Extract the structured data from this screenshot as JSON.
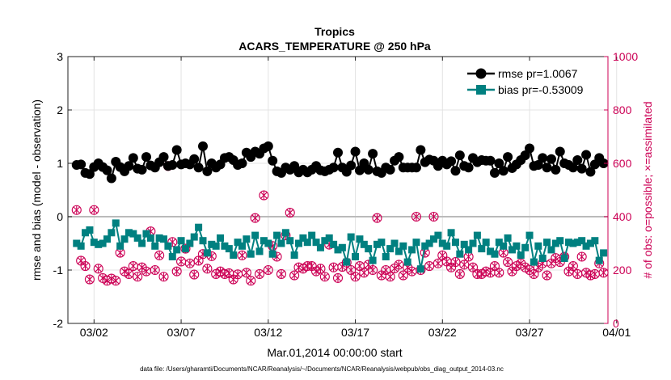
{
  "chart_data": {
    "type": "line",
    "title": "Tropics",
    "subtitle": "ACARS_TEMPERATURE @ 250 hPa",
    "xlabel": "Mar.01,2014 00:00:00 start",
    "ylabel_left": "rmse and bias (model - observation)",
    "ylabel_right": "# of obs: o=possible; ×=assimilated",
    "footnote": "data file: /Users/gharamti/Documents/NCAR/Reanalysis/~/Documents/NCAR/Reanalysis/webpub/obs_diag_output_2014-03.nc",
    "xlim": [
      0.5,
      31.5
    ],
    "xticks": [
      2,
      7,
      12,
      17,
      22,
      27,
      32
    ],
    "xtick_labels": [
      "03/02",
      "03/07",
      "03/12",
      "03/17",
      "03/22",
      "03/27",
      "04/01"
    ],
    "ylim_left": [
      -2,
      3
    ],
    "yticks_left": [
      -2,
      -1,
      0,
      1,
      2,
      3
    ],
    "ylim_right": [
      0,
      1000
    ],
    "yticks_right": [
      0,
      200,
      400,
      600,
      800,
      1000
    ],
    "zero_line": 0,
    "legend_position": "top-right",
    "colors": {
      "rmse": "#000000",
      "bias": "#008080",
      "obs": "#cc0055",
      "axis": "#222222",
      "zero": "#bbbbbb"
    },
    "x": [
      1.0,
      1.25,
      1.5,
      1.75,
      2.0,
      2.25,
      2.5,
      2.75,
      3.0,
      3.25,
      3.5,
      3.75,
      4.0,
      4.25,
      4.5,
      4.75,
      5.0,
      5.25,
      5.5,
      5.75,
      6.0,
      6.25,
      6.5,
      6.75,
      7.0,
      7.25,
      7.5,
      7.75,
      8.0,
      8.25,
      8.5,
      8.75,
      9.0,
      9.25,
      9.5,
      9.75,
      10.0,
      10.25,
      10.5,
      10.75,
      11.0,
      11.25,
      11.5,
      11.75,
      12.0,
      12.25,
      12.5,
      12.75,
      13.0,
      13.25,
      13.5,
      13.75,
      14.0,
      14.25,
      14.5,
      14.75,
      15.0,
      15.25,
      15.5,
      15.75,
      16.0,
      16.25,
      16.5,
      16.75,
      17.0,
      17.25,
      17.5,
      17.75,
      18.0,
      18.25,
      18.5,
      18.75,
      19.0,
      19.25,
      19.5,
      19.75,
      20.0,
      20.25,
      20.5,
      20.75,
      21.0,
      21.25,
      21.5,
      21.75,
      22.0,
      22.25,
      22.5,
      22.75,
      23.0,
      23.25,
      23.5,
      23.75,
      24.0,
      24.25,
      24.5,
      24.75,
      25.0,
      25.25,
      25.5,
      25.75,
      26.0,
      26.25,
      26.5,
      26.75,
      27.0,
      27.25,
      27.5,
      27.75,
      28.0,
      28.25,
      28.5,
      28.75,
      29.0,
      29.25,
      29.5,
      29.75,
      30.0,
      30.25,
      30.5,
      30.75,
      31.0,
      31.25
    ],
    "series": [
      {
        "name": "rmse pr=1.0067",
        "marker": "circle",
        "values": [
          0.97,
          0.98,
          0.82,
          0.8,
          0.93,
          1.0,
          0.93,
          0.87,
          0.72,
          1.03,
          0.93,
          0.85,
          0.95,
          1.1,
          0.9,
          0.88,
          1.12,
          0.96,
          0.92,
          1.02,
          1.12,
          0.95,
          0.97,
          1.25,
          0.98,
          1.0,
          0.98,
          1.08,
          0.92,
          1.32,
          0.85,
          1.0,
          0.92,
          0.98,
          1.1,
          1.12,
          1.06,
          0.97,
          1.0,
          1.2,
          1.12,
          1.22,
          1.18,
          1.28,
          1.32,
          1.05,
          0.85,
          0.82,
          0.92,
          0.88,
          0.95,
          0.83,
          0.88,
          0.83,
          0.88,
          0.95,
          0.87,
          0.85,
          0.88,
          0.92,
          1.2,
          0.92,
          0.84,
          0.96,
          1.22,
          0.87,
          1.0,
          0.88,
          1.18,
          0.85,
          0.82,
          0.92,
          0.88,
          1.05,
          1.12,
          0.92,
          0.92,
          0.92,
          0.92,
          1.25,
          1.02,
          1.07,
          1.05,
          0.95,
          1.05,
          0.98,
          1.04,
          0.86,
          1.15,
          0.95,
          0.92,
          1.1,
          1.02,
          1.06,
          1.05,
          1.05,
          0.82,
          1.0,
          0.86,
          1.12,
          0.91,
          0.98,
          1.06,
          1.15,
          1.28,
          0.95,
          0.97,
          1.1,
          0.92,
          1.08,
          0.88,
          1.22,
          1.0,
          0.97,
          0.92,
          1.06,
          0.9,
          1.16,
          0.84,
          0.98,
          1.1,
          1.0
        ]
      },
      {
        "name": "bias pr=-0.53009",
        "marker": "square",
        "values": [
          -0.5,
          -0.55,
          -0.3,
          -0.25,
          -0.48,
          -0.52,
          -0.5,
          -0.42,
          -0.3,
          -0.12,
          -0.55,
          -0.42,
          -0.3,
          -0.32,
          -0.4,
          -0.5,
          -0.32,
          -0.4,
          -0.55,
          -0.4,
          -0.42,
          -0.55,
          -0.75,
          -0.62,
          -0.45,
          -0.6,
          -0.5,
          -0.38,
          -0.2,
          -0.45,
          -0.68,
          -0.52,
          -0.55,
          -0.4,
          -0.55,
          -0.6,
          -0.72,
          -0.48,
          -0.55,
          -0.42,
          -0.7,
          -0.35,
          -0.65,
          -0.45,
          -0.5,
          -0.7,
          -0.35,
          -0.5,
          -0.3,
          -0.45,
          -0.72,
          -0.5,
          -0.4,
          -0.48,
          -0.35,
          -0.48,
          -0.58,
          -0.45,
          -0.4,
          -0.52,
          -0.62,
          -0.58,
          -0.85,
          -0.38,
          -0.75,
          -0.42,
          -0.52,
          -0.6,
          -0.82,
          -0.52,
          -0.48,
          -0.75,
          -0.6,
          -0.5,
          -0.65,
          -0.55,
          -0.85,
          -0.62,
          -0.48,
          -0.98,
          -0.55,
          -0.5,
          -0.42,
          -0.35,
          -0.5,
          -0.55,
          -0.3,
          -0.48,
          -0.7,
          -0.52,
          -0.62,
          -0.5,
          -0.35,
          -0.6,
          -0.48,
          -0.65,
          -0.7,
          -0.48,
          -0.55,
          -0.4,
          -0.62,
          -0.55,
          -0.72,
          -0.58,
          -0.35,
          -0.85,
          -0.55,
          -0.78,
          -0.48,
          -0.62,
          -0.5,
          -0.45,
          -0.78,
          -0.48,
          -0.5,
          -0.48,
          -0.45,
          -0.55,
          -0.5,
          -0.45,
          -0.82,
          -0.68
        ]
      }
    ],
    "obs_possible": [
      425,
      235,
      215,
      165,
      425,
      205,
      170,
      160,
      168,
      160,
      265,
      195,
      185,
      215,
      175,
      210,
      195,
      345,
      200,
      255,
      175,
      590,
      305,
      195,
      232,
      280,
      225,
      183,
      235,
      260,
      205,
      252,
      185,
      195,
      185,
      188,
      165,
      184,
      255,
      190,
      160,
      395,
      185,
      480,
      200,
      290,
      250,
      185,
      330,
      415,
      180,
      210,
      205,
      215,
      215,
      195,
      205,
      175,
      295,
      210,
      170,
      212,
      228,
      200,
      175,
      215,
      190,
      220,
      200,
      395,
      180,
      200,
      175,
      206,
      220,
      180,
      210,
      195,
      400,
      200,
      265,
      215,
      400,
      225,
      255,
      232,
      210,
      230,
      185,
      220,
      250,
      210,
      185,
      185,
      195,
      190,
      215,
      190,
      265,
      230,
      195,
      215,
      225,
      210,
      200,
      185,
      210,
      225,
      180,
      225,
      245,
      230,
      250,
      195,
      215,
      185,
      250,
      190,
      180,
      185,
      225,
      190
    ],
    "obs_assimilated": [
      425,
      235,
      215,
      165,
      425,
      205,
      170,
      160,
      168,
      160,
      265,
      195,
      185,
      215,
      175,
      210,
      195,
      345,
      200,
      255,
      175,
      590,
      305,
      195,
      232,
      280,
      225,
      183,
      235,
      260,
      205,
      252,
      185,
      195,
      185,
      188,
      165,
      184,
      255,
      190,
      160,
      395,
      185,
      480,
      200,
      290,
      250,
      185,
      330,
      415,
      180,
      210,
      205,
      215,
      215,
      195,
      205,
      175,
      295,
      210,
      170,
      212,
      228,
      200,
      175,
      215,
      190,
      220,
      200,
      395,
      180,
      200,
      175,
      206,
      220,
      180,
      210,
      195,
      400,
      200,
      265,
      215,
      400,
      225,
      255,
      232,
      210,
      230,
      185,
      220,
      250,
      210,
      185,
      185,
      195,
      190,
      215,
      190,
      265,
      230,
      195,
      215,
      225,
      210,
      200,
      185,
      210,
      225,
      180,
      225,
      245,
      230,
      250,
      195,
      215,
      185,
      250,
      190,
      180,
      185,
      225,
      190
    ]
  }
}
